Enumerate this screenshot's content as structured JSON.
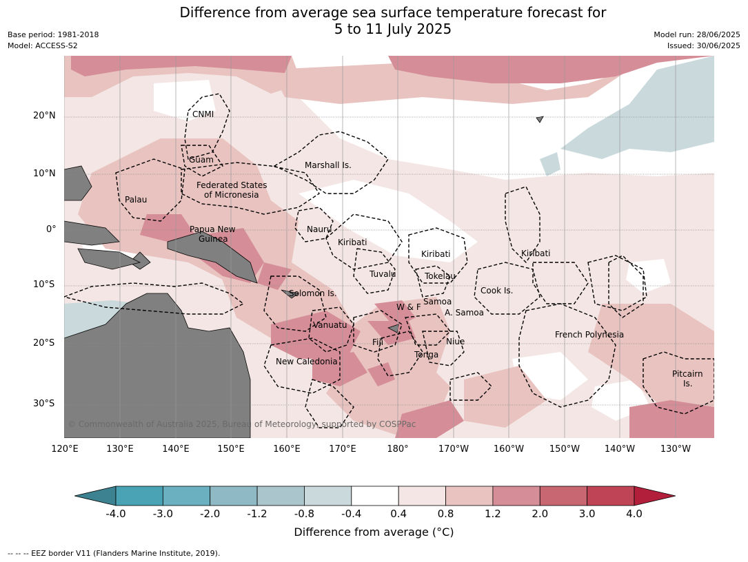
{
  "title_line1": "Difference from average sea surface temperature forecast for",
  "title_line2": "5 to 11 July 2025",
  "meta_left": [
    "Base period: 1981-2018",
    "Model: ACCESS-S2"
  ],
  "meta_right": [
    "Model run: 28/06/2025",
    "Issued: 30/06/2025"
  ],
  "lat_labels": [
    "20°N",
    "10°N",
    "0°",
    "10°S",
    "20°S",
    "30°S"
  ],
  "lon_labels": [
    "120°E",
    "130°E",
    "140°E",
    "150°E",
    "160°E",
    "170°E",
    "180°",
    "170°W",
    "160°W",
    "150°W",
    "140°W",
    "130°W"
  ],
  "places": {
    "cnmi": "CNMI",
    "guam": "Guam",
    "marshall": "Marshall Is.",
    "fsm1": "Federated States",
    "fsm2": "of Micronesia",
    "palau": "Palau",
    "nauru": "Nauru",
    "png1": "Papua New",
    "png2": "Guinea",
    "kiribati_w": "Kiribati",
    "kiribati_c": "Kiribati",
    "kiribati_e": "Kiribati",
    "tuvalu": "Tuvalu",
    "tokelau": "Tokelau",
    "cook": "Cook Is.",
    "solomon": "Solomon Is.",
    "wf": "W & F",
    "samoa": "Samoa",
    "asamoa": "A. Samoa",
    "vanuatu": "Vanuatu",
    "fiji": "Fiji",
    "niue": "Niue",
    "tonga": "Tonga",
    "frpoly": "French Polynesia",
    "newcal": "New Caledonia",
    "pitcairn1": "Pitcairn",
    "pitcairn2": "Is."
  },
  "copyright": "© Commonwealth of Australia 2025, Bureau of Meteorology, supported by COSPPac",
  "colorbar": {
    "ticks": [
      "-4.0",
      "-3.0",
      "-2.0",
      "-1.2",
      "-0.8",
      "-0.4",
      "0.4",
      "0.8",
      "1.2",
      "2.0",
      "3.0",
      "4.0"
    ],
    "colors": [
      "#3d8290",
      "#4aa3b4",
      "#6bb0c0",
      "#8fb9c4",
      "#aac6cc",
      "#c9d9dc",
      "#ffffff",
      "#f4e6e4",
      "#e8c3bf",
      "#d58e98",
      "#c86672",
      "#bf4455",
      "#b21f3a"
    ],
    "label": "Difference from average (°C)"
  },
  "footer": "--  --  -- EEZ border V11 (Flanders Marine Institute, 2019).",
  "colors": {
    "land": "#808080",
    "pale_pink": "#f4e6e4",
    "light_pink": "#e8c3bf",
    "mid_pink": "#d58e98",
    "pale_blue": "#c9d9dc"
  }
}
